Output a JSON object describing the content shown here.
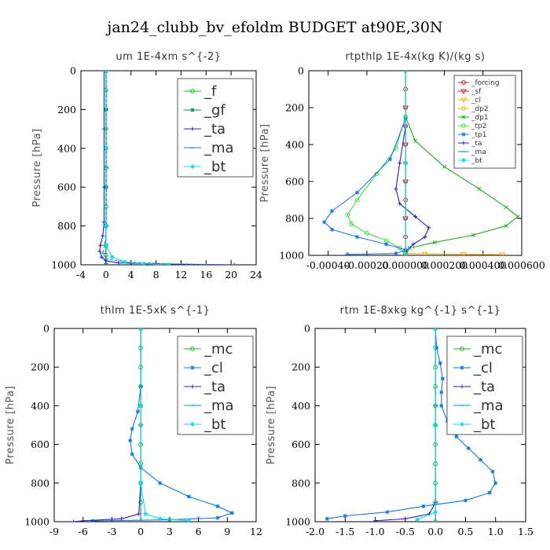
{
  "figure": {
    "title": "jan24_clubb_bv_efoldm  BUDGET at90E,30N"
  },
  "chart_data": [
    {
      "type": "line",
      "title": "um  1E-4xm s^{-2}",
      "ylabel": "Pressure [hPa]",
      "xlim": [
        -4,
        24
      ],
      "ylim": [
        1000,
        0
      ],
      "x_ticks": [
        "-4",
        "0",
        "4",
        "8",
        "12",
        "16",
        "20",
        "24"
      ],
      "x_tick_values": [
        -4,
        0,
        4,
        8,
        12,
        16,
        20,
        24
      ],
      "y_ticks": [
        "0",
        "200",
        "400",
        "600",
        "800",
        "1000"
      ],
      "y_tick_values": [
        0,
        200,
        400,
        600,
        800,
        1000
      ],
      "legend_style": "big",
      "series": [
        {
          "name": "_f",
          "color": "#22bb22",
          "marker": "circle",
          "points": [
            [
              0,
              0
            ],
            [
              0,
              100
            ],
            [
              0,
              200
            ],
            [
              0,
              300
            ],
            [
              0,
              400
            ],
            [
              0,
              500
            ],
            [
              0,
              600
            ],
            [
              0,
              700
            ],
            [
              0,
              800
            ],
            [
              0,
              900
            ],
            [
              0,
              950
            ],
            [
              0,
              1000
            ]
          ]
        },
        {
          "name": "_gf",
          "color": "#008866",
          "marker": "star",
          "points": [
            [
              0,
              0
            ],
            [
              0,
              200
            ],
            [
              0,
              400
            ],
            [
              0,
              600
            ],
            [
              0,
              800
            ],
            [
              0,
              900
            ],
            [
              0,
              1000
            ]
          ]
        },
        {
          "name": "_ta",
          "color": "#2222cc",
          "marker": "plus",
          "points": [
            [
              -0.3,
              0
            ],
            [
              -0.3,
              300
            ],
            [
              -0.3,
              600
            ],
            [
              -0.3,
              780
            ],
            [
              -0.5,
              850
            ],
            [
              -0.9,
              900
            ],
            [
              -1.0,
              930
            ],
            [
              -0.7,
              960
            ],
            [
              0,
              980
            ],
            [
              2,
              990
            ],
            [
              8,
              996
            ],
            [
              20.5,
              1000
            ]
          ]
        },
        {
          "name": "_ma",
          "color": "#1188cc",
          "marker": "dash",
          "points": [
            [
              0.1,
              0
            ],
            [
              0.1,
              500
            ],
            [
              0.1,
              800
            ],
            [
              -0.2,
              900
            ],
            [
              -0.5,
              940
            ],
            [
              0,
              970
            ],
            [
              3,
              985
            ],
            [
              10,
              995
            ],
            [
              16,
              998
            ]
          ]
        },
        {
          "name": "_bt",
          "color": "#11ddee",
          "marker": "diamond",
          "points": [
            [
              0,
              0
            ],
            [
              0,
              400
            ],
            [
              0,
              800
            ],
            [
              0,
              900
            ],
            [
              1,
              960
            ],
            [
              3,
              985
            ],
            [
              6,
              995
            ],
            [
              10,
              1000
            ]
          ]
        }
      ]
    },
    {
      "type": "line",
      "title": "rtpthlp  1E-4x(kg K)/(kg s)",
      "ylabel": "Pressure [hPa]",
      "xlim": [
        -0.0005,
        0.0006
      ],
      "ylim": [
        1000,
        0
      ],
      "x_ticks": [
        "-0.00040",
        "-0.00020",
        "0.000000",
        "0.000200",
        "0.000400",
        "0.000600"
      ],
      "x_tick_values": [
        -0.0004,
        -0.0002,
        0,
        0.0002,
        0.0004,
        0.0006
      ],
      "y_ticks": [
        "0",
        "200",
        "400",
        "600",
        "800",
        "1000"
      ],
      "y_tick_values": [
        0,
        200,
        400,
        600,
        800,
        1000
      ],
      "legend_style": "small",
      "series": [
        {
          "name": "_forcing",
          "color": "#cc2222",
          "marker": "circle",
          "points": [
            [
              0,
              0
            ],
            [
              0,
              100
            ],
            [
              0,
              200
            ],
            [
              0,
              300
            ],
            [
              0,
              400
            ],
            [
              0,
              500
            ],
            [
              0,
              600
            ],
            [
              0,
              700
            ],
            [
              0,
              800
            ],
            [
              0,
              900
            ],
            [
              0,
              1000
            ]
          ]
        },
        {
          "name": "_sf",
          "color": "#ee2222",
          "marker": "tri",
          "points": [
            [
              0,
              0
            ],
            [
              0,
              200
            ],
            [
              0,
              400
            ],
            [
              0,
              600
            ],
            [
              0,
              800
            ],
            [
              0,
              1000
            ]
          ]
        },
        {
          "name": "_cl",
          "color": "#ffaa11",
          "marker": "tri",
          "points": [
            [
              0,
              990
            ],
            [
              0.0001,
              992
            ],
            [
              0.0003,
              994
            ],
            [
              0.0005,
              996
            ]
          ]
        },
        {
          "name": "_dp2",
          "color": "#ddbb22",
          "marker": "circle",
          "points": [
            [
              0,
              0
            ],
            [
              0,
              500
            ],
            [
              0,
              1000
            ]
          ]
        },
        {
          "name": "_dp1",
          "color": "#22aa22",
          "marker": "x",
          "points": [
            [
              0,
              250
            ],
            [
              5e-05,
              380
            ],
            [
              0.0002,
              520
            ],
            [
              0.00038,
              640
            ],
            [
              0.00052,
              740
            ],
            [
              0.00058,
              790
            ],
            [
              0.00052,
              840
            ],
            [
              0.00035,
              890
            ],
            [
              0.00015,
              930
            ],
            [
              2e-05,
              960
            ],
            [
              0,
              1000
            ]
          ]
        },
        {
          "name": "_tp2",
          "color": "#44dd44",
          "marker": "circle",
          "points": [
            [
              0,
              250
            ],
            [
              -5e-05,
              420
            ],
            [
              -0.00015,
              560
            ],
            [
              -0.00025,
              700
            ],
            [
              -0.0003,
              780
            ],
            [
              -0.00028,
              830
            ],
            [
              -0.0002,
              880
            ],
            [
              -0.0001,
              920
            ],
            [
              -3e-05,
              960
            ],
            [
              0,
              1000
            ]
          ]
        },
        {
          "name": "_tp1",
          "color": "#2277ee",
          "marker": "star",
          "points": [
            [
              0,
              260
            ],
            [
              -8e-05,
              480
            ],
            [
              -0.00025,
              660
            ],
            [
              -0.00038,
              760
            ],
            [
              -0.00042,
              820
            ],
            [
              -0.00038,
              860
            ],
            [
              -0.00025,
              900
            ],
            [
              -0.0001,
              940
            ],
            [
              0,
              970
            ],
            [
              -5e-05,
              990
            ],
            [
              -0.0003,
              995
            ]
          ]
        },
        {
          "name": "_ta",
          "color": "#2222cc",
          "marker": "plus",
          "points": [
            [
              0,
              300
            ],
            [
              -3e-05,
              500
            ],
            [
              -5e-05,
              640
            ],
            [
              -3e-05,
              720
            ],
            [
              5e-05,
              790
            ],
            [
              0.00012,
              850
            ],
            [
              0.0001,
              900
            ],
            [
              4e-05,
              940
            ],
            [
              0,
              980
            ],
            [
              0,
              1000
            ]
          ]
        },
        {
          "name": "_ma",
          "color": "#1188cc",
          "marker": "dash",
          "points": [
            [
              0,
              0
            ],
            [
              0,
              500
            ],
            [
              0,
              1000
            ]
          ]
        },
        {
          "name": "_bt",
          "color": "#11ddee",
          "marker": "diamond",
          "points": [
            [
              0,
              0
            ],
            [
              0,
              500
            ],
            [
              0,
              1000
            ]
          ]
        }
      ]
    },
    {
      "type": "line",
      "title": "thlm  1E-5xK s^{-1}",
      "ylabel": "Pressure [hPa]",
      "xlim": [
        -9,
        12
      ],
      "ylim": [
        1000,
        0
      ],
      "x_ticks": [
        "-9",
        "-6",
        "-3",
        "0",
        "3",
        "6",
        "9",
        "12"
      ],
      "x_tick_values": [
        -9,
        -6,
        -3,
        0,
        3,
        6,
        9,
        12
      ],
      "y_ticks": [
        "0",
        "200",
        "400",
        "600",
        "800",
        "1000"
      ],
      "y_tick_values": [
        0,
        200,
        400,
        600,
        800,
        1000
      ],
      "legend_style": "big",
      "series": [
        {
          "name": "_mc",
          "color": "#22bb22",
          "marker": "circle",
          "points": [
            [
              0,
              0
            ],
            [
              0,
              100
            ],
            [
              0,
              200
            ],
            [
              0,
              300
            ],
            [
              0,
              400
            ],
            [
              0,
              500
            ],
            [
              0,
              600
            ],
            [
              0,
              700
            ],
            [
              0,
              800
            ],
            [
              0,
              900
            ],
            [
              0,
              1000
            ]
          ]
        },
        {
          "name": "_cl",
          "color": "#1177dd",
          "marker": "star",
          "points": [
            [
              0,
              0
            ],
            [
              0,
              300
            ],
            [
              -0.3,
              430
            ],
            [
              -0.9,
              520
            ],
            [
              -1.1,
              580
            ],
            [
              -0.9,
              650
            ],
            [
              0,
              720
            ],
            [
              2,
              800
            ],
            [
              5,
              870
            ],
            [
              8,
              920
            ],
            [
              9.5,
              955
            ],
            [
              8,
              980
            ],
            [
              3,
              990
            ],
            [
              -5,
              996
            ]
          ]
        },
        {
          "name": "_ta",
          "color": "#2222cc",
          "marker": "plus",
          "points": [
            [
              0,
              0
            ],
            [
              0,
              400
            ],
            [
              0,
              800
            ],
            [
              -0.2,
              960
            ],
            [
              -2,
              985
            ],
            [
              -6,
              995
            ],
            [
              -7,
              1000
            ]
          ]
        },
        {
          "name": "_ma",
          "color": "#1188cc",
          "marker": "dash",
          "points": [
            [
              0,
              0
            ],
            [
              0,
              500
            ],
            [
              0,
              1000
            ]
          ]
        },
        {
          "name": "_bt",
          "color": "#11ddee",
          "marker": "diamond",
          "points": [
            [
              0,
              0
            ],
            [
              0,
              400
            ],
            [
              0,
              800
            ],
            [
              0.5,
              960
            ],
            [
              2,
              985
            ],
            [
              5,
              995
            ]
          ]
        }
      ]
    },
    {
      "type": "line",
      "title": "rtm  1E-8xkg kg^{-1} s^{-1}",
      "ylabel": "Pressure [hPa]",
      "xlim": [
        -2.0,
        1.5
      ],
      "ylim": [
        1000,
        0
      ],
      "x_ticks": [
        "-2.0",
        "-1.5",
        "-1.0",
        "-0.5",
        "0.0",
        "0.5",
        "1.0",
        "1.5"
      ],
      "x_tick_values": [
        -2.0,
        -1.5,
        -1.0,
        -0.5,
        0.0,
        0.5,
        1.0,
        1.5
      ],
      "y_ticks": [
        "0",
        "200",
        "400",
        "600",
        "800",
        "1000"
      ],
      "y_tick_values": [
        0,
        200,
        400,
        600,
        800,
        1000
      ],
      "legend_style": "big",
      "series": [
        {
          "name": "_mc",
          "color": "#22bb22",
          "marker": "circle",
          "points": [
            [
              0,
              0
            ],
            [
              0,
              100
            ],
            [
              0,
              200
            ],
            [
              0,
              300
            ],
            [
              0,
              400
            ],
            [
              0,
              500
            ],
            [
              0,
              600
            ],
            [
              0,
              700
            ],
            [
              0,
              800
            ],
            [
              0,
              900
            ],
            [
              0,
              1000
            ]
          ]
        },
        {
          "name": "_cl",
          "color": "#1177dd",
          "marker": "star",
          "points": [
            [
              0,
              0
            ],
            [
              0.02,
              100
            ],
            [
              0.08,
              180
            ],
            [
              0.12,
              260
            ],
            [
              0.1,
              330
            ],
            [
              0.1,
              400
            ],
            [
              0.2,
              480
            ],
            [
              0.35,
              560
            ],
            [
              0.55,
              620
            ],
            [
              0.75,
              680
            ],
            [
              0.95,
              740
            ],
            [
              1.0,
              800
            ],
            [
              0.9,
              850
            ],
            [
              0.5,
              890
            ],
            [
              -0.2,
              920
            ],
            [
              -0.8,
              950
            ],
            [
              -1.5,
              970
            ],
            [
              -1.8,
              985
            ]
          ]
        },
        {
          "name": "_ta",
          "color": "#2222cc",
          "marker": "plus",
          "points": [
            [
              0,
              0
            ],
            [
              0,
              400
            ],
            [
              0,
              900
            ],
            [
              -0.1,
              960
            ],
            [
              -0.5,
              985
            ],
            [
              -1.0,
              995
            ]
          ]
        },
        {
          "name": "_ma",
          "color": "#1188cc",
          "marker": "dash",
          "points": [
            [
              0,
              0
            ],
            [
              0,
              500
            ],
            [
              0,
              1000
            ]
          ]
        },
        {
          "name": "_bt",
          "color": "#11ddee",
          "marker": "diamond",
          "points": [
            [
              0,
              0
            ],
            [
              0,
              500
            ],
            [
              0,
              950
            ],
            [
              -0.3,
              990
            ]
          ]
        }
      ]
    }
  ]
}
